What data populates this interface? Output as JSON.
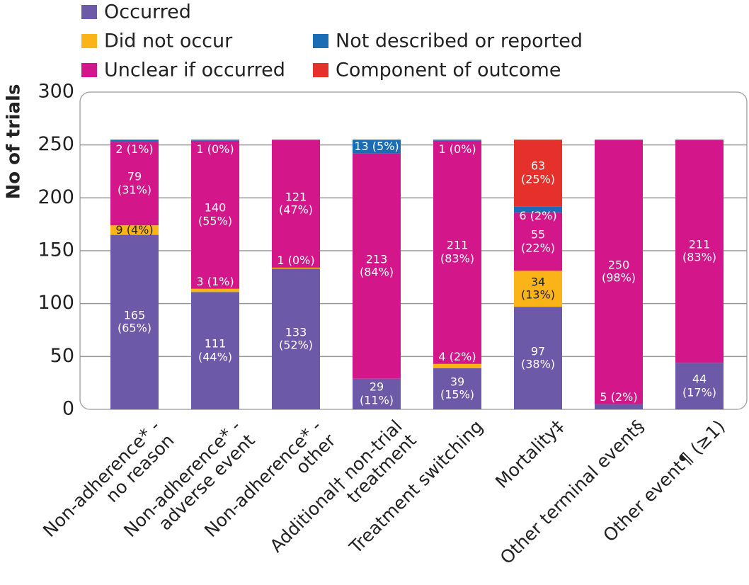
{
  "chart_data": {
    "type": "stacked_bar",
    "y_label": "No of trials",
    "categories": [
      "Non-adherence* -\nno reason",
      "Non-adherence* -\nadverse event",
      "Non-adherence* -\nother",
      "Additional† non-trial\ntreatment",
      "Treatment switching",
      "Mortality‡",
      "Other terminal event§",
      "Other event¶ (≥1)"
    ],
    "series": [
      {
        "name": "Occurred",
        "color": "#6c59a7",
        "values": [
          165,
          111,
          133,
          29,
          39,
          97,
          5,
          44
        ],
        "value_labels": [
          "165\n(65%)",
          "111\n(44%)",
          "133\n(52%)",
          "29\n(11%)",
          "39\n(15%)",
          "97\n(38%)",
          "5 (2%)",
          "44\n(17%)"
        ]
      },
      {
        "name": "Did not occur",
        "color": "#fbb418",
        "values": [
          9,
          3,
          1,
          0,
          4,
          34,
          0,
          0
        ],
        "value_labels": [
          "9 (4%)",
          "3 (1%)",
          "1 (0%)",
          null,
          "4 (2%)",
          "34\n(13%)",
          null,
          null
        ]
      },
      {
        "name": "Unclear if occurred",
        "color": "#d4168b",
        "values": [
          79,
          140,
          121,
          213,
          211,
          55,
          250,
          211
        ],
        "value_labels": [
          "79\n(31%)",
          "140\n(55%)",
          "121\n(47%)",
          "213\n(84%)",
          "211\n(83%)",
          "55\n(22%)",
          "250\n(98%)",
          "211\n(83%)"
        ]
      },
      {
        "name": "Not described or reported",
        "color": "#1a6db5",
        "values": [
          2,
          1,
          0,
          13,
          1,
          6,
          0,
          0
        ],
        "value_labels": [
          "2 (1%)",
          "1 (0%)",
          null,
          "13 (5%)",
          "1 (0%)",
          "6 (2%)",
          null,
          null
        ]
      },
      {
        "name": "Component of outcome",
        "color": "#e6302c",
        "values": [
          0,
          0,
          0,
          0,
          0,
          63,
          0,
          0
        ],
        "value_labels": [
          null,
          null,
          null,
          null,
          null,
          "63\n(25%)",
          null,
          null
        ]
      }
    ],
    "ylim": [
      0,
      300
    ],
    "yticks": [
      0,
      50,
      100,
      150,
      200,
      250,
      300
    ],
    "grid": true
  }
}
